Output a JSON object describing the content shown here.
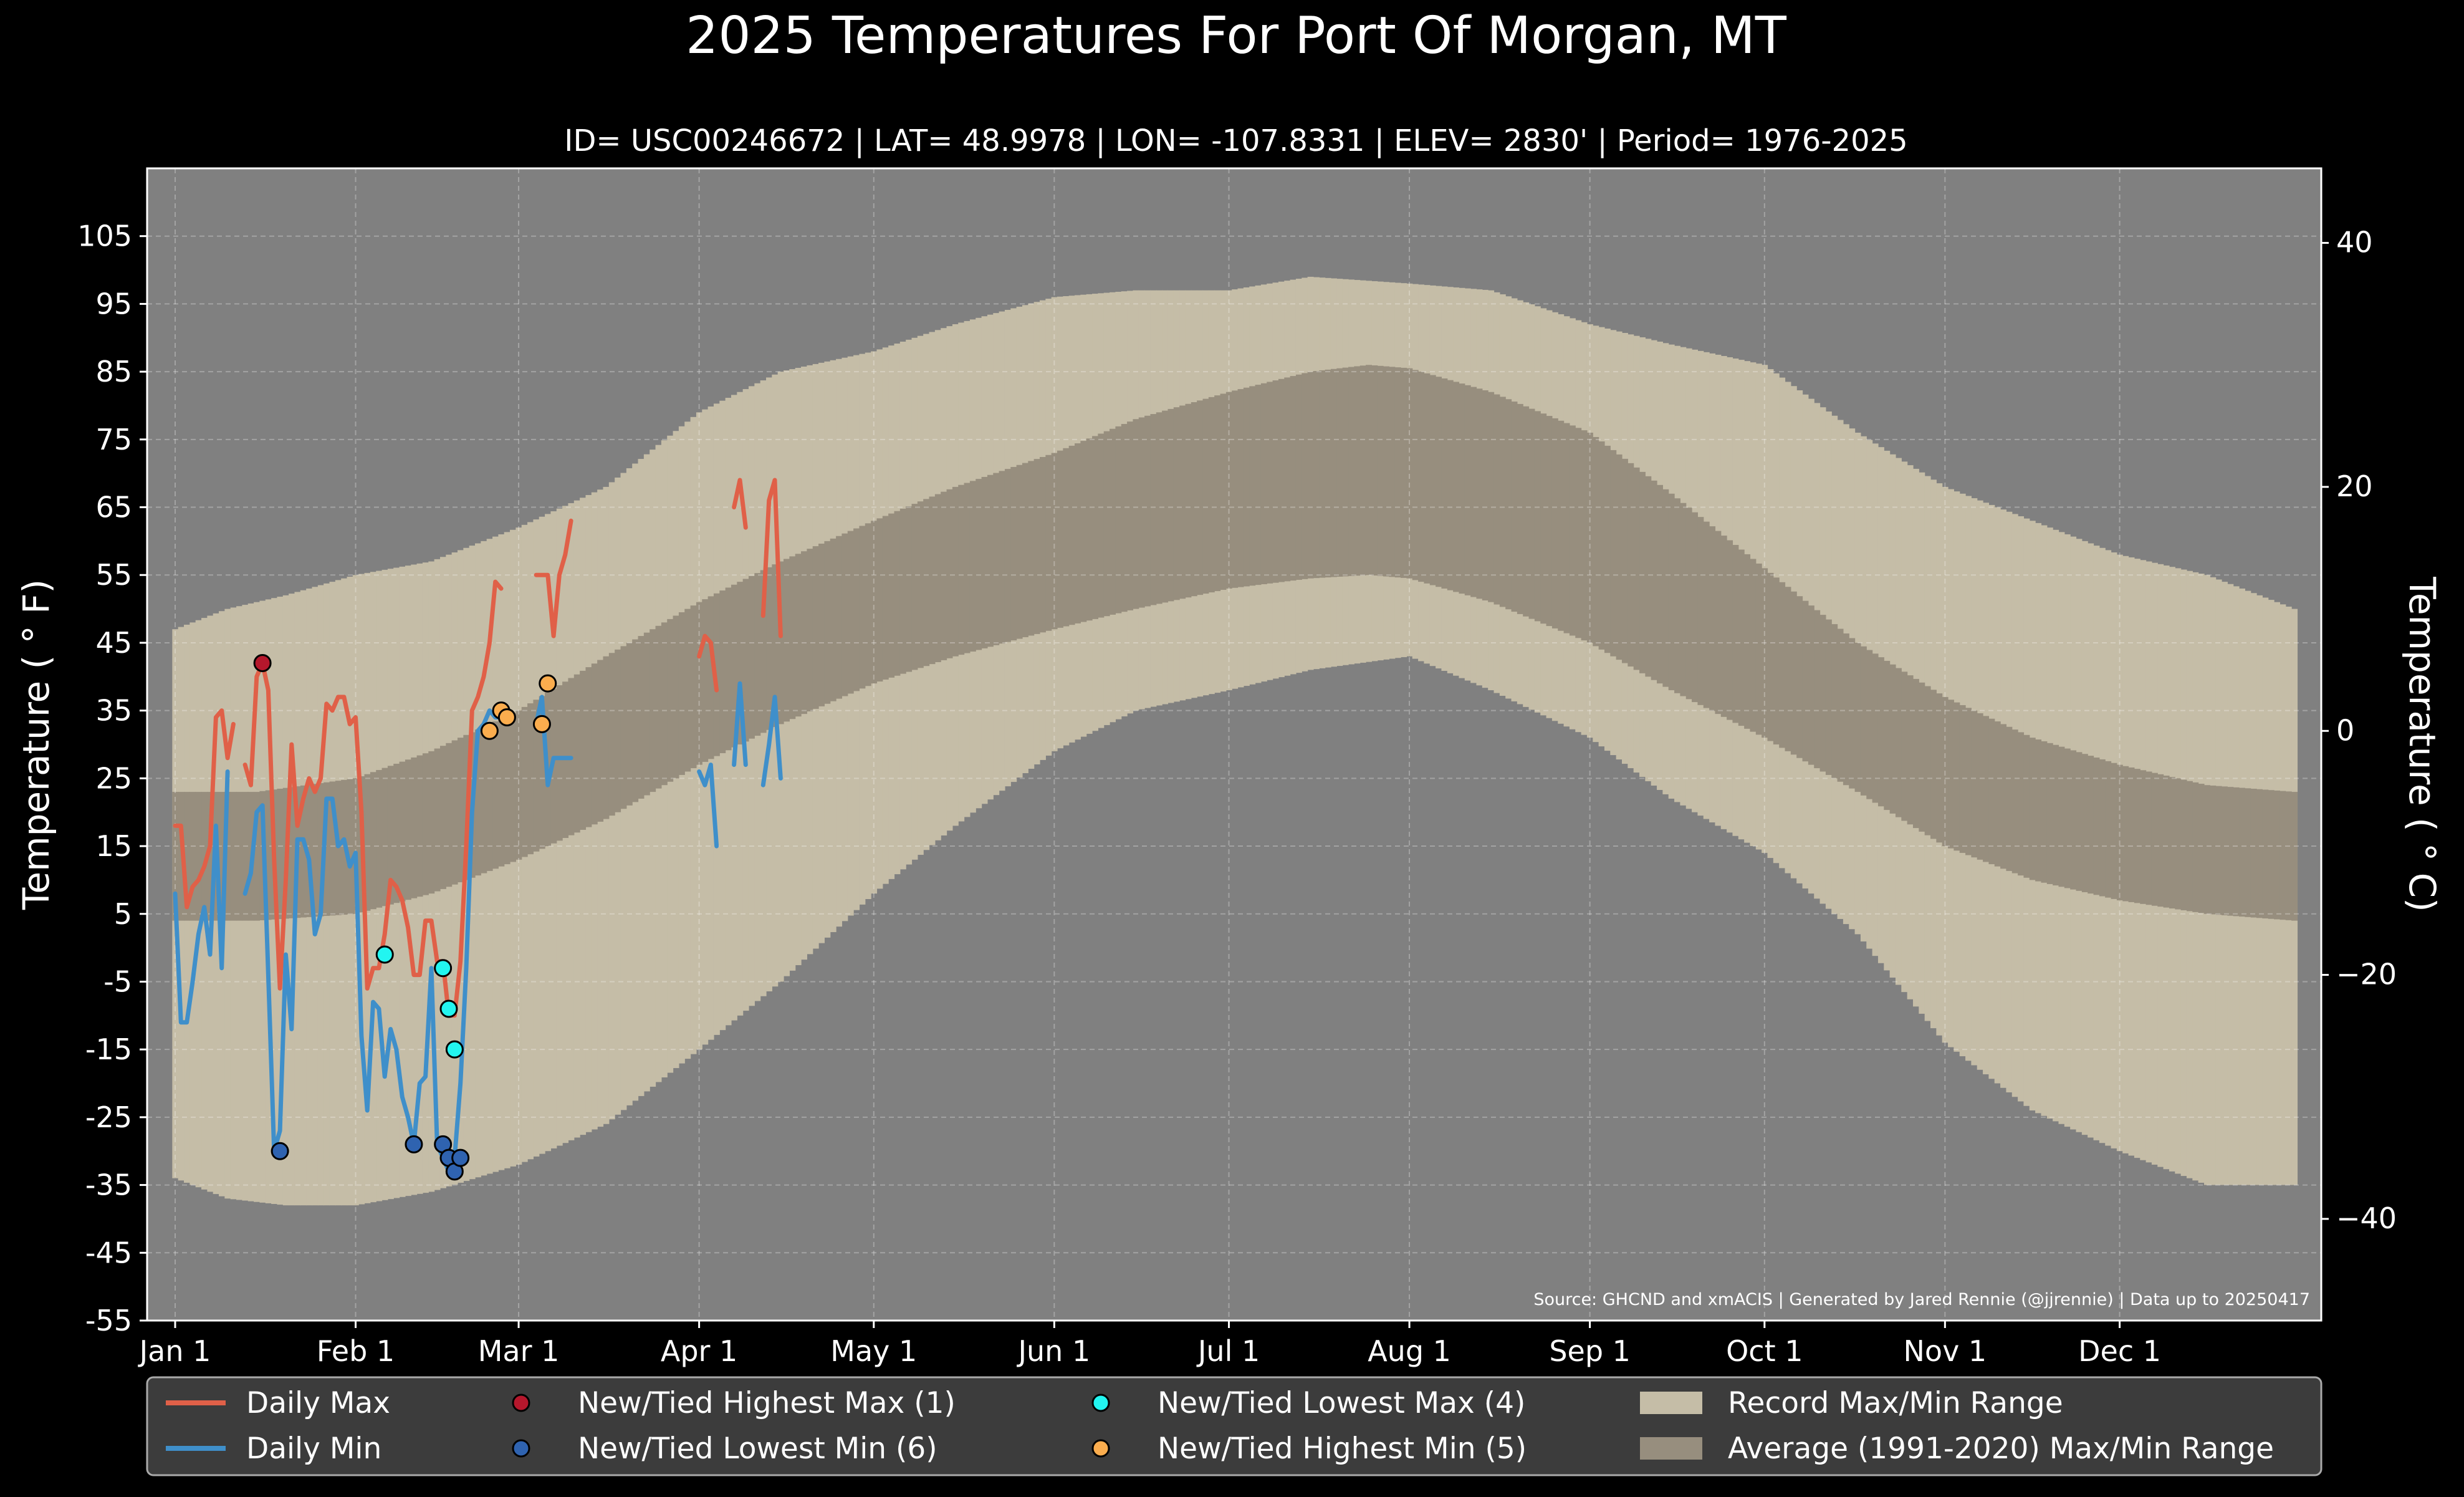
{
  "chart_data": {
    "type": "area",
    "title": "2025 Temperatures For Port Of Morgan, MT",
    "subtitle": "ID= USC00246672 | LAT= 48.9978 | LON= -107.8331 | ELEV= 2830' | Period= 1976-2025",
    "ylabel": "Temperature ($^\\circ$F)",
    "ylabel_display": "Temperature ( ° F)",
    "y2label_display": "Temperature ( ° C)",
    "source_note": "Source: GHCND and xmACIS | Generated by Jared Rennie (@jjrennie) | Data up to 20250417",
    "ylim": [
      -55,
      115
    ],
    "y_ticks": [
      -55,
      -45,
      -35,
      -25,
      -15,
      -5,
      5,
      15,
      25,
      35,
      45,
      55,
      65,
      75,
      85,
      95,
      105
    ],
    "y2_ticks": [
      -40,
      -20,
      0,
      20,
      40
    ],
    "x_ticks": [
      {
        "day": 1,
        "label": "Jan 1"
      },
      {
        "day": 32,
        "label": "Feb 1"
      },
      {
        "day": 60,
        "label": "Mar 1"
      },
      {
        "day": 91,
        "label": "Apr 1"
      },
      {
        "day": 121,
        "label": "May 1"
      },
      {
        "day": 152,
        "label": "Jun 1"
      },
      {
        "day": 182,
        "label": "Jul 1"
      },
      {
        "day": 213,
        "label": "Aug 1"
      },
      {
        "day": 244,
        "label": "Sep 1"
      },
      {
        "day": 274,
        "label": "Oct 1"
      },
      {
        "day": 305,
        "label": "Nov 1"
      },
      {
        "day": 335,
        "label": "Dec 1"
      }
    ],
    "grid": true,
    "legend_placement": "bottom",
    "record_max_knots": [
      [
        1,
        47
      ],
      [
        10,
        50
      ],
      [
        20,
        52
      ],
      [
        32,
        55
      ],
      [
        45,
        57
      ],
      [
        60,
        62
      ],
      [
        75,
        68
      ],
      [
        91,
        79
      ],
      [
        105,
        85
      ],
      [
        121,
        88
      ],
      [
        135,
        92
      ],
      [
        152,
        96
      ],
      [
        166,
        97
      ],
      [
        182,
        97
      ],
      [
        196,
        99
      ],
      [
        213,
        98
      ],
      [
        227,
        97
      ],
      [
        244,
        92
      ],
      [
        258,
        89
      ],
      [
        274,
        86
      ],
      [
        290,
        76
      ],
      [
        305,
        68
      ],
      [
        320,
        63
      ],
      [
        335,
        58
      ],
      [
        350,
        55
      ],
      [
        365,
        50
      ]
    ],
    "record_min_knots": [
      [
        1,
        -34
      ],
      [
        10,
        -37
      ],
      [
        20,
        -38
      ],
      [
        32,
        -38
      ],
      [
        45,
        -36
      ],
      [
        60,
        -32
      ],
      [
        75,
        -26
      ],
      [
        91,
        -15
      ],
      [
        105,
        -5
      ],
      [
        121,
        8
      ],
      [
        135,
        18
      ],
      [
        152,
        29
      ],
      [
        166,
        35
      ],
      [
        182,
        38
      ],
      [
        196,
        41
      ],
      [
        213,
        43
      ],
      [
        227,
        38
      ],
      [
        244,
        31
      ],
      [
        258,
        22
      ],
      [
        274,
        14
      ],
      [
        290,
        2
      ],
      [
        305,
        -14
      ],
      [
        320,
        -24
      ],
      [
        335,
        -30
      ],
      [
        350,
        -35
      ],
      [
        365,
        -35
      ]
    ],
    "normal_max_knots": [
      [
        1,
        23
      ],
      [
        15,
        23
      ],
      [
        32,
        25
      ],
      [
        45,
        29
      ],
      [
        60,
        35
      ],
      [
        75,
        43
      ],
      [
        91,
        51
      ],
      [
        105,
        57
      ],
      [
        121,
        63
      ],
      [
        135,
        68
      ],
      [
        152,
        73
      ],
      [
        166,
        78
      ],
      [
        182,
        82
      ],
      [
        196,
        85
      ],
      [
        206,
        86
      ],
      [
        213,
        85.5
      ],
      [
        227,
        82
      ],
      [
        244,
        76
      ],
      [
        258,
        67
      ],
      [
        274,
        56
      ],
      [
        290,
        45
      ],
      [
        305,
        37
      ],
      [
        320,
        31
      ],
      [
        335,
        27
      ],
      [
        350,
        24
      ],
      [
        365,
        23
      ]
    ],
    "normal_min_knots": [
      [
        1,
        4
      ],
      [
        15,
        4
      ],
      [
        32,
        5
      ],
      [
        45,
        8
      ],
      [
        60,
        13
      ],
      [
        75,
        19
      ],
      [
        91,
        27
      ],
      [
        105,
        33
      ],
      [
        121,
        39
      ],
      [
        135,
        43
      ],
      [
        152,
        47
      ],
      [
        166,
        50
      ],
      [
        182,
        53
      ],
      [
        196,
        54.5
      ],
      [
        206,
        55
      ],
      [
        213,
        54.5
      ],
      [
        227,
        51
      ],
      [
        244,
        45
      ],
      [
        258,
        38
      ],
      [
        274,
        31
      ],
      [
        290,
        23
      ],
      [
        305,
        15
      ],
      [
        320,
        10
      ],
      [
        335,
        7
      ],
      [
        350,
        5
      ],
      [
        365,
        4
      ]
    ],
    "series": [
      {
        "name": "Daily Max",
        "color": "#e06048",
        "segments": [
          [
            [
              1,
              18
            ],
            [
              2,
              18
            ],
            [
              3,
              6
            ],
            [
              4,
              9
            ],
            [
              5,
              10
            ],
            [
              6,
              12
            ],
            [
              7,
              15
            ],
            [
              8,
              34
            ],
            [
              9,
              35
            ],
            [
              10,
              28
            ],
            [
              11,
              33
            ]
          ],
          [
            [
              13,
              27
            ],
            [
              14,
              24
            ],
            [
              15,
              40
            ],
            [
              16,
              42
            ],
            [
              17,
              38
            ],
            [
              18,
              13
            ],
            [
              19,
              -6
            ],
            [
              20,
              10
            ],
            [
              21,
              30
            ],
            [
              22,
              18
            ],
            [
              23,
              22
            ],
            [
              24,
              25
            ],
            [
              25,
              23
            ],
            [
              26,
              25
            ],
            [
              27,
              36
            ],
            [
              28,
              35
            ],
            [
              29,
              37
            ],
            [
              30,
              37
            ],
            [
              31,
              33
            ],
            [
              32,
              34
            ],
            [
              33,
              20
            ],
            [
              34,
              -6
            ],
            [
              35,
              -3
            ],
            [
              36,
              -3
            ],
            [
              37,
              2
            ],
            [
              38,
              10
            ],
            [
              39,
              9
            ],
            [
              40,
              7
            ],
            [
              41,
              3
            ],
            [
              42,
              -4
            ],
            [
              43,
              -4
            ],
            [
              44,
              4
            ],
            [
              45,
              4
            ],
            [
              46,
              -2
            ],
            [
              47,
              -2
            ],
            [
              48,
              -10
            ],
            [
              49,
              -10
            ],
            [
              50,
              -2
            ],
            [
              51,
              15
            ],
            [
              52,
              35
            ],
            [
              53,
              37
            ],
            [
              54,
              40
            ],
            [
              55,
              45
            ],
            [
              56,
              54
            ],
            [
              57,
              53
            ]
          ],
          [
            [
              63,
              55
            ],
            [
              64,
              55
            ],
            [
              65,
              55
            ],
            [
              66,
              46
            ],
            [
              67,
              55
            ],
            [
              68,
              58
            ],
            [
              69,
              63
            ]
          ],
          [
            [
              91,
              43
            ],
            [
              92,
              46
            ],
            [
              93,
              45
            ],
            [
              94,
              38
            ]
          ],
          [
            [
              97,
              65
            ],
            [
              98,
              69
            ],
            [
              99,
              62
            ]
          ],
          [
            [
              102,
              49
            ],
            [
              103,
              66
            ],
            [
              104,
              69
            ],
            [
              105,
              46
            ]
          ]
        ]
      },
      {
        "name": "Daily Min",
        "color": "#3f8fca",
        "segments": [
          [
            [
              1,
              8
            ],
            [
              2,
              -11
            ],
            [
              3,
              -11
            ],
            [
              4,
              -5
            ],
            [
              5,
              2
            ],
            [
              6,
              6
            ],
            [
              7,
              -1
            ],
            [
              8,
              18
            ],
            [
              9,
              -3
            ],
            [
              10,
              26
            ]
          ],
          [
            [
              13,
              8
            ],
            [
              14,
              11
            ],
            [
              15,
              20
            ],
            [
              16,
              21
            ],
            [
              17,
              -4
            ],
            [
              18,
              -30
            ],
            [
              19,
              -27
            ],
            [
              20,
              -1
            ],
            [
              21,
              -12
            ],
            [
              22,
              16
            ],
            [
              23,
              16
            ],
            [
              24,
              13
            ],
            [
              25,
              2
            ],
            [
              26,
              5
            ],
            [
              27,
              22
            ],
            [
              28,
              22
            ],
            [
              29,
              15
            ],
            [
              30,
              16
            ],
            [
              31,
              12
            ],
            [
              32,
              14
            ],
            [
              33,
              -13
            ],
            [
              34,
              -24
            ],
            [
              35,
              -8
            ],
            [
              36,
              -9
            ],
            [
              37,
              -19
            ],
            [
              38,
              -12
            ],
            [
              39,
              -15
            ],
            [
              40,
              -22
            ],
            [
              41,
              -25
            ],
            [
              42,
              -29
            ],
            [
              43,
              -20
            ],
            [
              44,
              -19
            ],
            [
              45,
              -3
            ],
            [
              46,
              -29
            ],
            [
              47,
              -31
            ],
            [
              48,
              -33
            ],
            [
              49,
              -31
            ],
            [
              50,
              -20
            ],
            [
              51,
              -3
            ],
            [
              52,
              20
            ],
            [
              53,
              32
            ],
            [
              54,
              33
            ],
            [
              55,
              35
            ],
            [
              56,
              34
            ],
            [
              57,
              34
            ]
          ],
          [
            [
              63,
              33
            ],
            [
              64,
              37
            ],
            [
              65,
              24
            ],
            [
              66,
              28
            ],
            [
              67,
              28
            ],
            [
              68,
              28
            ],
            [
              69,
              28
            ]
          ],
          [
            [
              91,
              26
            ],
            [
              92,
              24
            ],
            [
              93,
              27
            ],
            [
              94,
              15
            ]
          ],
          [
            [
              97,
              27
            ],
            [
              98,
              39
            ],
            [
              99,
              27
            ]
          ],
          [
            [
              102,
              24
            ],
            [
              103,
              30
            ],
            [
              104,
              37
            ],
            [
              105,
              25
            ]
          ]
        ]
      }
    ],
    "records": [
      {
        "name": "New/Tied Highest Max (1)",
        "color": "#b5172c",
        "points": [
          [
            16,
            42
          ]
        ]
      },
      {
        "name": "New/Tied Lowest Min (6)",
        "color": "#2f63b0",
        "points": [
          [
            19,
            -30
          ],
          [
            42,
            -29
          ],
          [
            47,
            -29
          ],
          [
            48,
            -31
          ],
          [
            49,
            -33
          ],
          [
            50,
            -31
          ]
        ]
      },
      {
        "name": "New/Tied Lowest Max (4)",
        "color": "#22f5f0",
        "points": [
          [
            37,
            -1
          ],
          [
            47,
            -3
          ],
          [
            48,
            -9
          ],
          [
            49,
            -15
          ]
        ]
      },
      {
        "name": "New/Tied Highest Min (5)",
        "color": "#fbad4e",
        "points": [
          [
            55,
            32
          ],
          [
            57,
            35
          ],
          [
            58,
            34
          ],
          [
            64,
            33
          ],
          [
            65,
            39
          ]
        ]
      }
    ],
    "band_legend": [
      {
        "name": "Record Max/Min Range",
        "color": "#c5bda7"
      },
      {
        "name": "Average (1991-2020) Max/Min Range",
        "color": "#978e7e"
      }
    ]
  }
}
